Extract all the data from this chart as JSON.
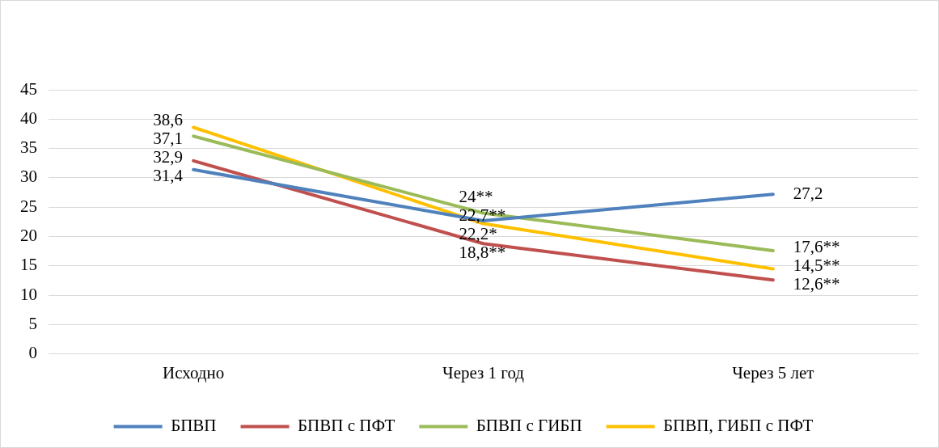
{
  "chart_data": {
    "type": "line",
    "categories": [
      "Исходно",
      "Через 1 год",
      "Через 5 лет"
    ],
    "series": [
      {
        "name": "БПВП",
        "color": "#4f81bd",
        "values": [
          31.4,
          22.7,
          27.2
        ],
        "value_labels": [
          "31,4",
          "22,7**",
          "27,2"
        ]
      },
      {
        "name": "БПВП с ПФТ",
        "color": "#c0504d",
        "values": [
          32.9,
          18.8,
          12.6
        ],
        "value_labels": [
          "32,9",
          "18,8**",
          "12,6**"
        ]
      },
      {
        "name": "БПВП с ГИБП",
        "color": "#9bbb59",
        "values": [
          37.1,
          24,
          17.6
        ],
        "value_labels": [
          "37,1",
          "24**",
          "17,6**"
        ]
      },
      {
        "name": "БПВП, ГИБП с ПФТ",
        "color": "#ffc000",
        "values": [
          38.6,
          22.2,
          14.5
        ],
        "value_labels": [
          "38,6",
          "22,2*",
          "14,5**"
        ]
      }
    ],
    "ylim": [
      0,
      45
    ],
    "yticks": [
      0,
      5,
      10,
      15,
      20,
      25,
      30,
      35,
      40,
      45
    ],
    "grid": "y",
    "legend": "bottom",
    "marker": "none"
  }
}
